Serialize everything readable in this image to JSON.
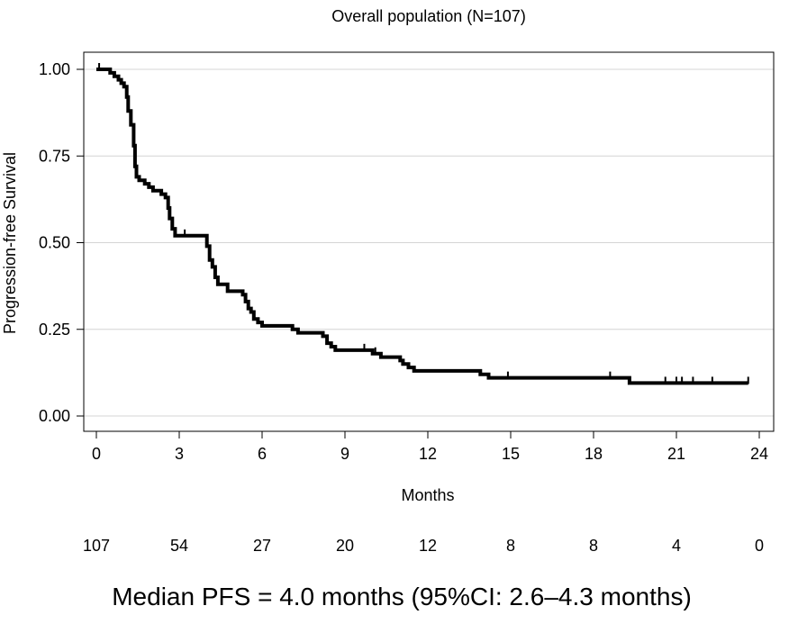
{
  "chart_data": {
    "type": "line",
    "title": "Overall population (N=107)",
    "xlabel": "Months",
    "ylabel": "Progression-free Survival",
    "xlim": [
      0,
      24
    ],
    "ylim": [
      0,
      1
    ],
    "x_ticks": [
      0,
      3,
      6,
      9,
      12,
      15,
      18,
      21,
      24
    ],
    "x_tick_labels": [
      "0",
      "3",
      "6",
      "9",
      "12",
      "15",
      "18",
      "21",
      "24"
    ],
    "y_ticks": [
      0,
      0.25,
      0.5,
      0.75,
      1.0
    ],
    "y_tick_labels": [
      "0.00",
      "0.25",
      "0.50",
      "0.75",
      "1.00"
    ],
    "grid": "horizontal",
    "series": [
      {
        "color": "#000000",
        "step": true,
        "points": [
          [
            0,
            1.0
          ],
          [
            0.5,
            1.0
          ],
          [
            0.5,
            0.99
          ],
          [
            0.65,
            0.99
          ],
          [
            0.65,
            0.98
          ],
          [
            0.8,
            0.98
          ],
          [
            0.8,
            0.97
          ],
          [
            0.9,
            0.97
          ],
          [
            0.9,
            0.96
          ],
          [
            1.0,
            0.96
          ],
          [
            1.0,
            0.95
          ],
          [
            1.1,
            0.95
          ],
          [
            1.1,
            0.92
          ],
          [
            1.15,
            0.92
          ],
          [
            1.15,
            0.88
          ],
          [
            1.25,
            0.88
          ],
          [
            1.25,
            0.84
          ],
          [
            1.35,
            0.84
          ],
          [
            1.35,
            0.78
          ],
          [
            1.4,
            0.78
          ],
          [
            1.4,
            0.72
          ],
          [
            1.45,
            0.72
          ],
          [
            1.45,
            0.69
          ],
          [
            1.55,
            0.69
          ],
          [
            1.55,
            0.68
          ],
          [
            1.75,
            0.68
          ],
          [
            1.75,
            0.67
          ],
          [
            1.9,
            0.67
          ],
          [
            1.9,
            0.66
          ],
          [
            2.05,
            0.66
          ],
          [
            2.05,
            0.65
          ],
          [
            2.35,
            0.65
          ],
          [
            2.35,
            0.64
          ],
          [
            2.5,
            0.64
          ],
          [
            2.5,
            0.63
          ],
          [
            2.6,
            0.63
          ],
          [
            2.6,
            0.6
          ],
          [
            2.65,
            0.6
          ],
          [
            2.65,
            0.57
          ],
          [
            2.75,
            0.57
          ],
          [
            2.75,
            0.54
          ],
          [
            2.85,
            0.54
          ],
          [
            2.85,
            0.52
          ],
          [
            4.0,
            0.52
          ],
          [
            4.0,
            0.49
          ],
          [
            4.1,
            0.49
          ],
          [
            4.1,
            0.45
          ],
          [
            4.2,
            0.45
          ],
          [
            4.2,
            0.43
          ],
          [
            4.3,
            0.43
          ],
          [
            4.3,
            0.4
          ],
          [
            4.4,
            0.4
          ],
          [
            4.4,
            0.38
          ],
          [
            4.75,
            0.38
          ],
          [
            4.75,
            0.36
          ],
          [
            5.3,
            0.36
          ],
          [
            5.3,
            0.35
          ],
          [
            5.4,
            0.35
          ],
          [
            5.4,
            0.33
          ],
          [
            5.5,
            0.33
          ],
          [
            5.5,
            0.31
          ],
          [
            5.6,
            0.31
          ],
          [
            5.6,
            0.3
          ],
          [
            5.7,
            0.3
          ],
          [
            5.7,
            0.28
          ],
          [
            5.85,
            0.28
          ],
          [
            5.85,
            0.27
          ],
          [
            6.0,
            0.27
          ],
          [
            6.0,
            0.26
          ],
          [
            7.1,
            0.26
          ],
          [
            7.1,
            0.25
          ],
          [
            7.3,
            0.25
          ],
          [
            7.3,
            0.24
          ],
          [
            8.2,
            0.24
          ],
          [
            8.2,
            0.23
          ],
          [
            8.35,
            0.23
          ],
          [
            8.35,
            0.21
          ],
          [
            8.5,
            0.21
          ],
          [
            8.5,
            0.2
          ],
          [
            8.65,
            0.2
          ],
          [
            8.65,
            0.19
          ],
          [
            10.0,
            0.19
          ],
          [
            10.0,
            0.18
          ],
          [
            10.3,
            0.18
          ],
          [
            10.3,
            0.17
          ],
          [
            11.0,
            0.17
          ],
          [
            11.0,
            0.16
          ],
          [
            11.1,
            0.16
          ],
          [
            11.1,
            0.15
          ],
          [
            11.3,
            0.15
          ],
          [
            11.3,
            0.14
          ],
          [
            11.5,
            0.14
          ],
          [
            11.5,
            0.13
          ],
          [
            13.9,
            0.13
          ],
          [
            13.9,
            0.12
          ],
          [
            14.2,
            0.12
          ],
          [
            14.2,
            0.11
          ],
          [
            19.3,
            0.11
          ],
          [
            19.3,
            0.095
          ],
          [
            23.6,
            0.095
          ]
        ],
        "censored": [
          [
            0.1,
            1.0
          ],
          [
            3.2,
            0.52
          ],
          [
            9.7,
            0.19
          ],
          [
            10.1,
            0.18
          ],
          [
            14.9,
            0.11
          ],
          [
            18.6,
            0.11
          ],
          [
            20.6,
            0.095
          ],
          [
            21.0,
            0.095
          ],
          [
            21.2,
            0.095
          ],
          [
            21.6,
            0.095
          ],
          [
            22.3,
            0.095
          ],
          [
            23.6,
            0.095
          ]
        ]
      }
    ]
  },
  "risk_table": {
    "at_times": [
      0,
      3,
      6,
      9,
      12,
      15,
      18,
      21,
      24
    ],
    "counts": [
      "107",
      "54",
      "27",
      "20",
      "12",
      "8",
      "8",
      "4",
      "0"
    ]
  },
  "footer": {
    "median_text": "Median PFS = 4.0 months (95%CI: 2.6–4.3 months)"
  }
}
